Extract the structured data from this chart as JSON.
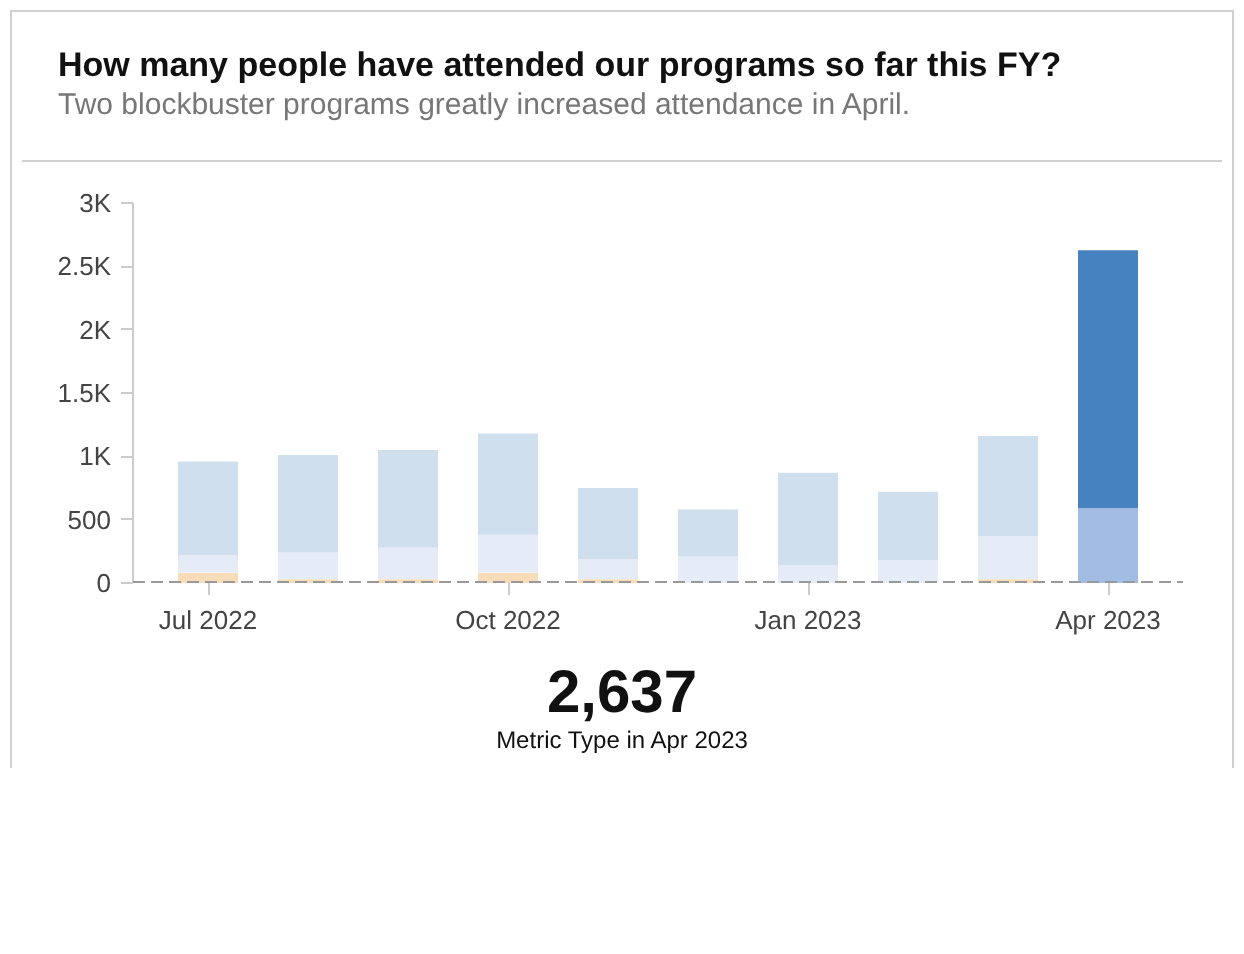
{
  "chart_data": {
    "type": "bar",
    "stacked": true,
    "title": "How many people have attended our programs so far this FY?",
    "subtitle": "Two blockbuster programs greatly increased attendance in April.",
    "categories": [
      "Jul 2022",
      null,
      null,
      "Oct 2022",
      null,
      null,
      "Jan 2023",
      null,
      null,
      "Apr 2023"
    ],
    "series": [
      {
        "color": "#f8dcb8",
        "values": [
          80,
          30,
          30,
          80,
          30,
          null,
          null,
          null,
          30,
          null
        ]
      },
      {
        "colors": [
          "#e6ecf7",
          "#e6ecf7",
          "#e6ecf7",
          "#e6ecf7",
          "#e6ecf7",
          "#e6ecf7",
          "#e6ecf7",
          "#e6ecf7",
          "#e6ecf7",
          "#a3bce3"
        ],
        "values": [
          140,
          210,
          250,
          300,
          160,
          210,
          140,
          180,
          340,
          590
        ]
      },
      {
        "colors": [
          "#d0dfee",
          "#d0dfee",
          "#d0dfee",
          "#d0dfee",
          "#d0dfee",
          "#d0dfee",
          "#d0dfee",
          "#d0dfee",
          "#d0dfee",
          "#4682c0"
        ],
        "values": [
          740,
          770,
          770,
          800,
          560,
          370,
          730,
          540,
          790,
          2037
        ]
      }
    ],
    "ylim": [
      0,
      3000
    ],
    "yticks": [
      0,
      500,
      {
        "value": 1000,
        "label": "1K"
      },
      {
        "value": 1500,
        "label": "1.5K"
      },
      {
        "value": 2000,
        "label": "2K"
      },
      {
        "value": 2500,
        "label": "2.5K"
      },
      {
        "value": 3000,
        "label": "3K"
      }
    ],
    "ref_lines": [
      {
        "axis": "y",
        "value": 0,
        "color": "#999999",
        "line_style": "dashed"
      }
    ],
    "grid": false,
    "annotations": [
      "2,637",
      "Metric Type in Apr 2023"
    ]
  }
}
